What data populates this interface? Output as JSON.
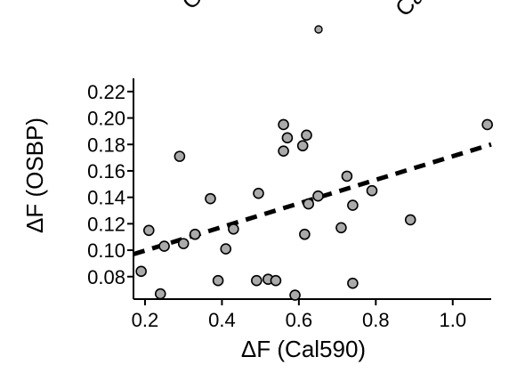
{
  "chart_data": {
    "type": "scatter",
    "xlabel": "ΔF (Cal590)",
    "ylabel": "ΔF (OSBP)",
    "xlim": [
      0.17,
      1.1
    ],
    "ylim": [
      0.063,
      0.23
    ],
    "xticks": [
      {
        "value": 0.2,
        "label": "0.2"
      },
      {
        "value": 0.4,
        "label": "0.4"
      },
      {
        "value": 0.6,
        "label": "0.6"
      },
      {
        "value": 0.8,
        "label": "0.8"
      },
      {
        "value": 1.0,
        "label": "1.0"
      }
    ],
    "yticks": [
      {
        "value": 0.08,
        "label": "0.08"
      },
      {
        "value": 0.1,
        "label": "0.10"
      },
      {
        "value": 0.12,
        "label": "0.12"
      },
      {
        "value": 0.14,
        "label": "0.14"
      },
      {
        "value": 0.16,
        "label": "0.16"
      },
      {
        "value": 0.18,
        "label": "0.18"
      },
      {
        "value": 0.2,
        "label": "0.20"
      },
      {
        "value": 0.22,
        "label": "0.22"
      }
    ],
    "grid": false,
    "legend": "none",
    "point_color": "#aaaaaa",
    "point_edge_color": "#000000",
    "trendline": {
      "style": "dashed",
      "x": [
        0.17,
        1.1
      ],
      "y": [
        0.097,
        0.18
      ]
    },
    "points": [
      {
        "x": 0.19,
        "y": 0.084
      },
      {
        "x": 0.21,
        "y": 0.115
      },
      {
        "x": 0.24,
        "y": 0.067
      },
      {
        "x": 0.25,
        "y": 0.103
      },
      {
        "x": 0.29,
        "y": 0.171
      },
      {
        "x": 0.3,
        "y": 0.105
      },
      {
        "x": 0.33,
        "y": 0.112
      },
      {
        "x": 0.37,
        "y": 0.139
      },
      {
        "x": 0.39,
        "y": 0.077
      },
      {
        "x": 0.41,
        "y": 0.101
      },
      {
        "x": 0.43,
        "y": 0.116
      },
      {
        "x": 0.49,
        "y": 0.077
      },
      {
        "x": 0.495,
        "y": 0.143
      },
      {
        "x": 0.52,
        "y": 0.078
      },
      {
        "x": 0.54,
        "y": 0.077
      },
      {
        "x": 0.56,
        "y": 0.195
      },
      {
        "x": 0.56,
        "y": 0.175
      },
      {
        "x": 0.57,
        "y": 0.185
      },
      {
        "x": 0.59,
        "y": 0.066
      },
      {
        "x": 0.61,
        "y": 0.179
      },
      {
        "x": 0.615,
        "y": 0.112
      },
      {
        "x": 0.62,
        "y": 0.187
      },
      {
        "x": 0.625,
        "y": 0.135
      },
      {
        "x": 0.65,
        "y": 0.141
      },
      {
        "x": 0.71,
        "y": 0.117
      },
      {
        "x": 0.725,
        "y": 0.156
      },
      {
        "x": 0.74,
        "y": 0.134
      },
      {
        "x": 0.74,
        "y": 0.075
      },
      {
        "x": 0.79,
        "y": 0.145
      },
      {
        "x": 0.89,
        "y": 0.123
      },
      {
        "x": 1.09,
        "y": 0.195
      }
    ]
  }
}
